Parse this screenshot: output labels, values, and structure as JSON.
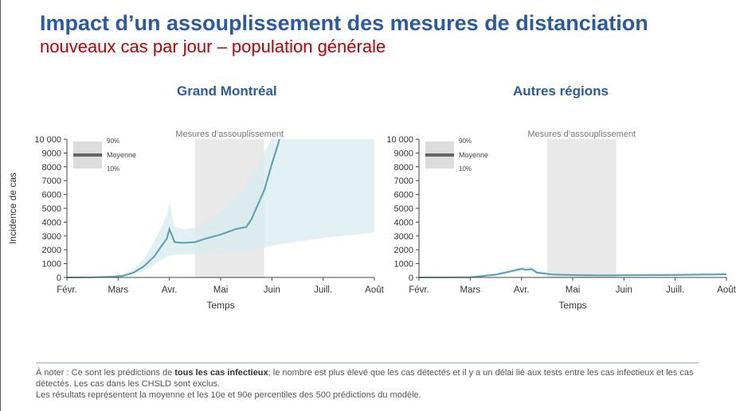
{
  "header": {
    "title": "Impact d’un assouplissement des mesures de distanciation",
    "subtitle": "nouveaux cas par jour – population générale"
  },
  "colors": {
    "title": "#2c5aa0",
    "subtitle": "#c00000",
    "line": "#5a9fb0",
    "band": "#d6ebef",
    "shade": "#e9e9e9"
  },
  "chart_data": [
    {
      "type": "area",
      "title": "Grand Montréal",
      "xlabel": "Temps",
      "ylabel": "Incidence de cas",
      "x_ticks": [
        "Févr.",
        "Mars",
        "Avr.",
        "Mai",
        "Juin",
        "Juill.",
        "Août"
      ],
      "y_ticks": [
        "0",
        "1000",
        "2000",
        "3000",
        "4000",
        "5000",
        "6000",
        "7000",
        "8000",
        "9000",
        "10 000"
      ],
      "ylim": [
        0,
        10000
      ],
      "x_unit": "months since Feb 1 (0 = Févr., 6 = Août)",
      "shaded_region": {
        "label": "Mesures d’assouplissement",
        "x": [
          2.5,
          3.85
        ]
      },
      "legend": {
        "upper": "90%",
        "mean": "Moyenne",
        "lower": "10%"
      },
      "series": [
        {
          "name": "Moyenne",
          "x": [
            0,
            0.5,
            0.9,
            1.1,
            1.3,
            1.5,
            1.7,
            1.85,
            1.95,
            2.0,
            2.1,
            2.25,
            2.5,
            2.7,
            3.0,
            3.3,
            3.5,
            3.6,
            3.85,
            4.0,
            4.15
          ],
          "y": [
            0,
            10,
            60,
            120,
            350,
            800,
            1500,
            2300,
            2800,
            3500,
            2550,
            2500,
            2550,
            2800,
            3100,
            3500,
            3650,
            4200,
            6300,
            8200,
            10000
          ]
        },
        {
          "name": "90%",
          "x": [
            0,
            0.5,
            1.0,
            1.3,
            1.5,
            1.7,
            1.85,
            1.95,
            2.0,
            2.1,
            2.3,
            2.5,
            2.8,
            3.1,
            3.4,
            3.7,
            3.9,
            4.0,
            6.0
          ],
          "y": [
            0,
            20,
            120,
            550,
            1300,
            2600,
            3700,
            4500,
            5400,
            3700,
            3450,
            3600,
            4200,
            5100,
            6300,
            7900,
            9400,
            10000,
            10000
          ]
        },
        {
          "name": "10%",
          "x": [
            0,
            0.5,
            1.0,
            1.3,
            1.5,
            1.7,
            1.85,
            2.0,
            2.2,
            2.5,
            3.0,
            3.5,
            4.0,
            4.5,
            5.0,
            5.5,
            6.0
          ],
          "y": [
            0,
            5,
            40,
            200,
            450,
            900,
            1300,
            1600,
            1650,
            1700,
            1800,
            1900,
            2300,
            2600,
            2850,
            3050,
            3250
          ]
        }
      ]
    },
    {
      "type": "area",
      "title": "Autres régions",
      "xlabel": "Temps",
      "ylabel": "",
      "x_ticks": [
        "Févr.",
        "Mars",
        "Avr.",
        "Mai",
        "Juin",
        "Juill.",
        "Août"
      ],
      "y_ticks": [
        "0",
        "1000",
        "2000",
        "3000",
        "4000",
        "5000",
        "6000",
        "7000",
        "8000",
        "9000",
        "10 000"
      ],
      "ylim": [
        0,
        10000
      ],
      "x_unit": "months since Feb 1 (0 = Févr., 6 = Août)",
      "shaded_region": {
        "label": "Mesures d’assouplissement",
        "x": [
          2.5,
          3.85
        ]
      },
      "legend": {
        "upper": "90%",
        "mean": "Moyenne",
        "lower": "10%"
      },
      "series": [
        {
          "name": "Moyenne",
          "x": [
            0,
            1.0,
            1.5,
            1.8,
            2.0,
            2.1,
            2.2,
            2.3,
            2.6,
            3.0,
            3.5,
            4.0,
            5.0,
            6.0
          ],
          "y": [
            0,
            20,
            200,
            450,
            620,
            560,
            600,
            350,
            220,
            170,
            150,
            160,
            180,
            230
          ]
        },
        {
          "name": "90%",
          "x": [
            0,
            1.0,
            1.5,
            1.8,
            2.0,
            2.1,
            2.2,
            2.3,
            2.6,
            3.0,
            3.5,
            4.0,
            5.0,
            6.0
          ],
          "y": [
            0,
            40,
            300,
            600,
            780,
            720,
            760,
            480,
            320,
            260,
            230,
            250,
            280,
            330
          ]
        },
        {
          "name": "10%",
          "x": [
            0,
            1.0,
            1.5,
            1.8,
            2.0,
            2.1,
            2.2,
            2.3,
            2.6,
            3.0,
            3.5,
            4.0,
            5.0,
            6.0
          ],
          "y": [
            0,
            10,
            120,
            330,
            480,
            420,
            460,
            250,
            150,
            110,
            100,
            105,
            120,
            150
          ]
        }
      ]
    }
  ],
  "notes": {
    "line1_prefix": "À noter : Ce sont les prédictions de ",
    "line1_bold": "tous les cas infectieux",
    "line1_suffix": "; le nombre est plus élevé que les cas détectés et il y a un délai lié aux tests entre les cas infectieux et les cas détectés. Les cas dans les CHSLD sont exclus.",
    "line2": "Les résultats représentent la moyenne et les 10e et 90e percentiles des 500 prédictions du modèle."
  }
}
